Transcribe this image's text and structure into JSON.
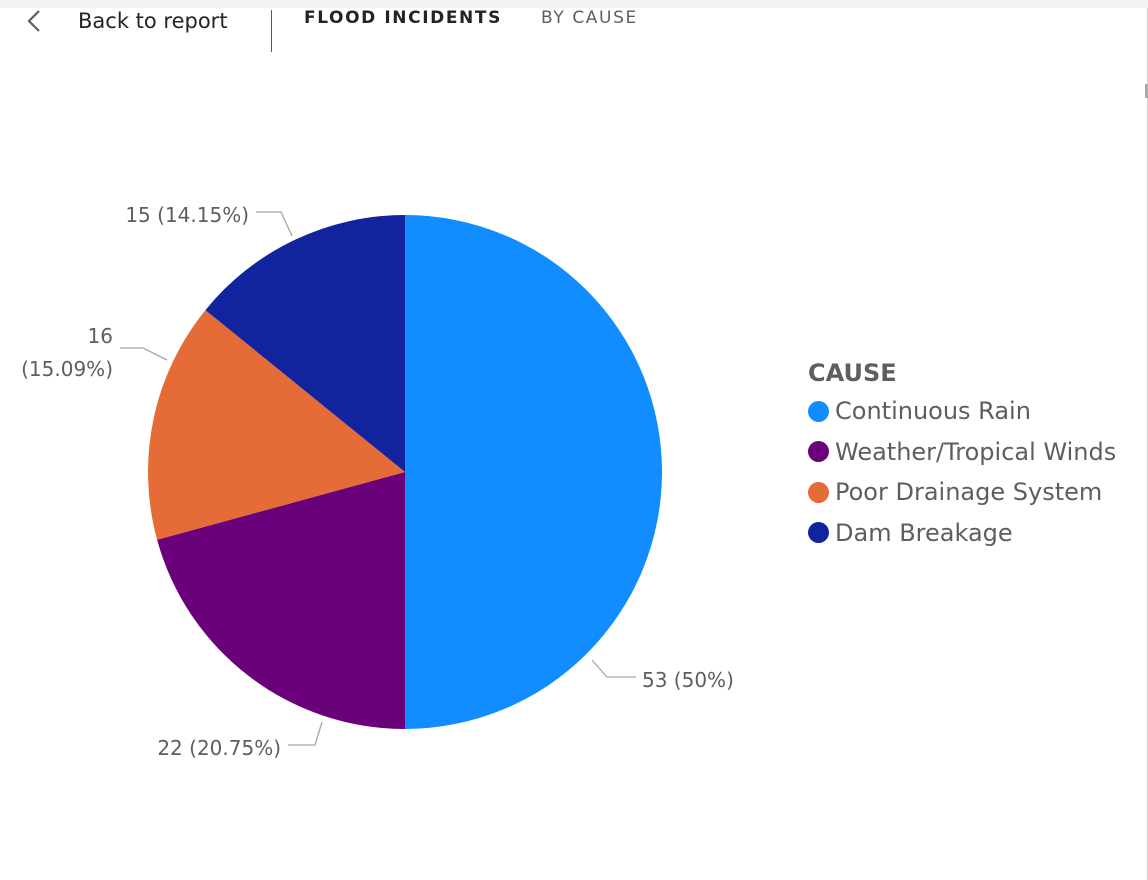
{
  "header": {
    "back_label": "Back to report",
    "breadcrumb": [
      "FLOOD INCIDENTS",
      "BY CAUSE"
    ]
  },
  "chart_data": {
    "type": "pie",
    "legend_title": "CAUSE",
    "legend_position": "right",
    "slices": [
      {
        "name": "Continuous Rain",
        "value": 53,
        "percent": 50.0,
        "label": "53 (50%)",
        "color": "#118dff"
      },
      {
        "name": "Weather/Tropical Winds",
        "value": 22,
        "percent": 20.75,
        "label": "22 (20.75%)",
        "color": "#6b007b"
      },
      {
        "name": "Poor Drainage System",
        "value": 16,
        "percent": 15.09,
        "label": "16 (15.09%)",
        "color": "#e66c37"
      },
      {
        "name": "Dam Breakage",
        "value": 15,
        "percent": 14.15,
        "label": "15 (14.15%)",
        "color": "#12239e"
      }
    ]
  }
}
